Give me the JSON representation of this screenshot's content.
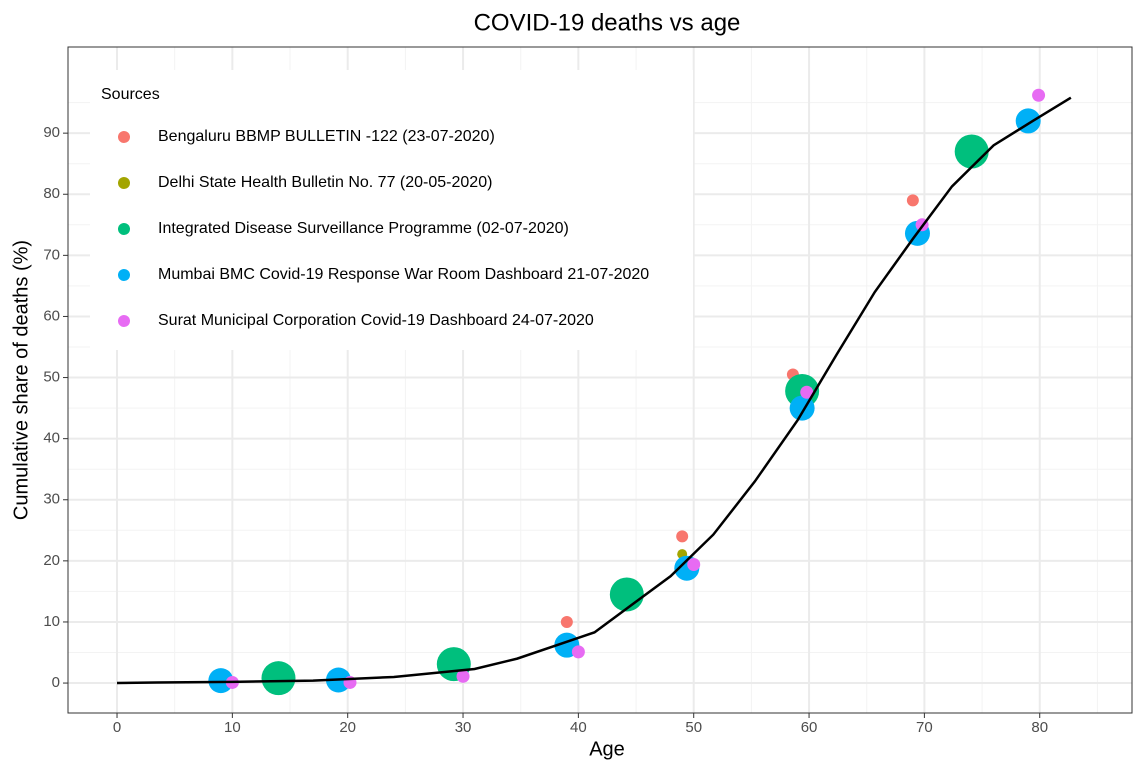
{
  "chart_data": {
    "type": "scatter",
    "title": "COVID-19 deaths vs age",
    "x_label": "Age",
    "y_label": "Cumulative share of deaths (%)",
    "xlim": [
      -4.25,
      88
    ],
    "ylim": [
      -4.9,
      104.1
    ],
    "xticks": [
      0,
      10,
      20,
      30,
      40,
      50,
      60,
      70,
      80
    ],
    "yticks": [
      0,
      10,
      20,
      30,
      40,
      50,
      60,
      70,
      80,
      90
    ],
    "xminor": [
      5,
      15,
      25,
      35,
      45,
      55,
      65,
      75,
      85
    ],
    "yminor": [
      5,
      15,
      25,
      35,
      45,
      55,
      65,
      75,
      85,
      95
    ],
    "grid": true,
    "legend_title": "Sources",
    "legend_position": "top-left",
    "series": [
      {
        "name": "Bengaluru BBMP BULLETIN -122 (23-07-2020)",
        "color": "#F8766D",
        "size": 1.2,
        "x": [
          9,
          19,
          29,
          39,
          49,
          58.6,
          69
        ],
        "values": [
          0.4,
          0.8,
          3.2,
          10,
          24,
          50.5,
          79
        ]
      },
      {
        "name": "Delhi State Health Bulletin No. 77 (20-05-2020)",
        "color": "#A3A500",
        "size": 1,
        "x": [
          49
        ],
        "values": [
          21.1
        ]
      },
      {
        "name": "Integrated Disease Surveillance Programme (02-07-2020)",
        "color": "#00BF7D",
        "size": 3.4,
        "x": [
          14,
          29.2,
          44.2,
          59.4,
          74.1
        ],
        "values": [
          0.8,
          3.1,
          14.5,
          47.8,
          87
        ]
      },
      {
        "name": "Mumbai BMC Covid-19 Response War Room Dashboard 21-07-2020",
        "color": "#00B0F6",
        "size": 2.5,
        "x": [
          9,
          19.2,
          39,
          49.4,
          59.4,
          69.4,
          79
        ],
        "values": [
          0.4,
          0.5,
          6.2,
          18.8,
          45,
          73.6,
          92
        ]
      },
      {
        "name": "Surat Municipal Corporation Covid-19 Dashboard 24-07-2020",
        "color": "#E76BF3",
        "size": 1.3,
        "x": [
          10,
          20.2,
          30,
          40,
          50,
          59.8,
          69.8,
          79.9
        ],
        "values": [
          0.1,
          0.1,
          1.1,
          5.1,
          19.4,
          47.6,
          75,
          96.2
        ]
      }
    ],
    "fit": {
      "color": "#000000",
      "x": [
        0,
        3.4,
        10,
        17,
        24,
        31,
        34.7,
        41.4,
        48,
        51.7,
        55.3,
        59,
        62.4,
        65.7,
        69,
        72.4,
        76,
        79.4,
        82.7
      ],
      "values": [
        0,
        0.1,
        0.2,
        0.4,
        1,
        2.3,
        4,
        8.3,
        17.5,
        24.3,
        33,
        43,
        53.8,
        64,
        72.7,
        81.3,
        88,
        92,
        95.8
      ]
    }
  }
}
